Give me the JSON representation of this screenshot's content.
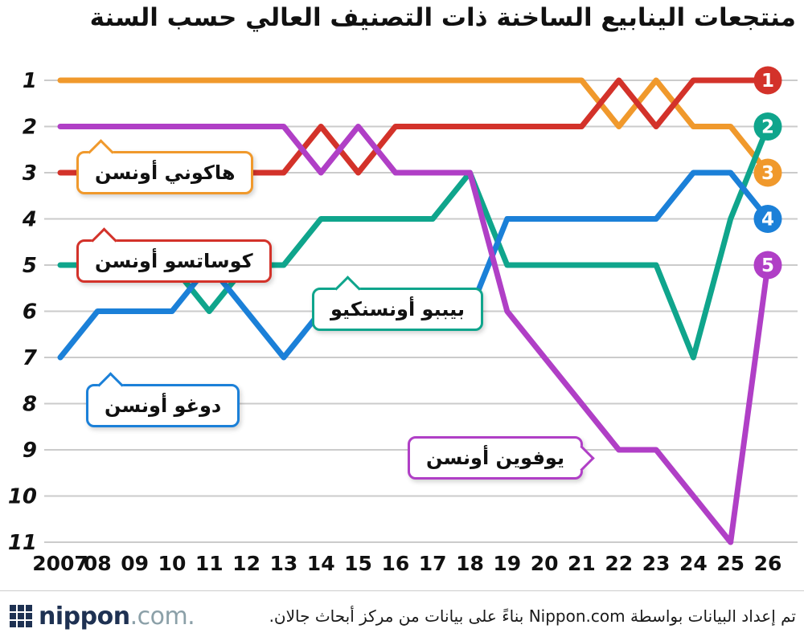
{
  "chart_data": {
    "type": "line",
    "variant": "bump-rank-chart",
    "title": "منتجعات الينابيع الساخنة ذات التصنيف العالي حسب السنة",
    "x": [
      "2007",
      "08",
      "09",
      "10",
      "11",
      "12",
      "13",
      "14",
      "15",
      "16",
      "17",
      "18",
      "19",
      "20",
      "21",
      "22",
      "23",
      "24",
      "25",
      "26"
    ],
    "y_ticks": [
      "1",
      "2",
      "3",
      "4",
      "5",
      "6",
      "7",
      "8",
      "9",
      "10",
      "11"
    ],
    "ylim": [
      1,
      11
    ],
    "y_inverted": true,
    "grid": true,
    "grid_color": "#CBCBCB",
    "series": [
      {
        "slug": "hakone-onsen",
        "label": "هاكوني أونسن",
        "color": "#F0992C",
        "values": [
          1,
          1,
          1,
          1,
          1,
          1,
          1,
          1,
          1,
          1,
          1,
          1,
          1,
          1,
          1,
          2,
          1,
          2,
          2,
          3
        ]
      },
      {
        "slug": "kusatsu-onsen",
        "label": "كوساتسو أونسن",
        "color": "#D3322A",
        "values": [
          3,
          3,
          3,
          3,
          3,
          3,
          3,
          2,
          3,
          2,
          2,
          2,
          2,
          2,
          2,
          1,
          2,
          1,
          1,
          1
        ]
      },
      {
        "slug": "beppu-onsenkyo",
        "label": "بيببو أونسنكيو",
        "color": "#0FA58C",
        "values": [
          5,
          5,
          5,
          5,
          6,
          5,
          5,
          4,
          4,
          4,
          4,
          3,
          5,
          5,
          5,
          5,
          5,
          7,
          4,
          2
        ]
      },
      {
        "slug": "dogo-onsen",
        "label": "دوغو أونسن",
        "color": "#1B80D8",
        "values": [
          7,
          6,
          6,
          6,
          5,
          6,
          7,
          6,
          6,
          6,
          6,
          6,
          4,
          4,
          4,
          4,
          4,
          3,
          3,
          4
        ]
      },
      {
        "slug": "yufuin-onsen",
        "label": "يوفوين أونسن",
        "color": "#B03FC6",
        "values": [
          2,
          2,
          2,
          2,
          2,
          2,
          2,
          3,
          2,
          3,
          3,
          3,
          6,
          7,
          8,
          9,
          9,
          10,
          11,
          5
        ]
      }
    ],
    "badges": [
      {
        "value": "1",
        "rank": 1,
        "color": "#D3322A"
      },
      {
        "value": "2",
        "rank": 2,
        "color": "#0FA58C"
      },
      {
        "value": "3",
        "rank": 3,
        "color": "#F0992C"
      },
      {
        "value": "4",
        "rank": 4,
        "color": "#1B80D8"
      },
      {
        "value": "5",
        "rank": 5,
        "color": "#B03FC6"
      }
    ]
  },
  "footer": {
    "logo_bold": "nippon",
    "logo_light": ".com.",
    "source": "تم إعداد البيانات بواسطة Nippon.com بناءً على بيانات من مركز أبحاث جالان."
  }
}
